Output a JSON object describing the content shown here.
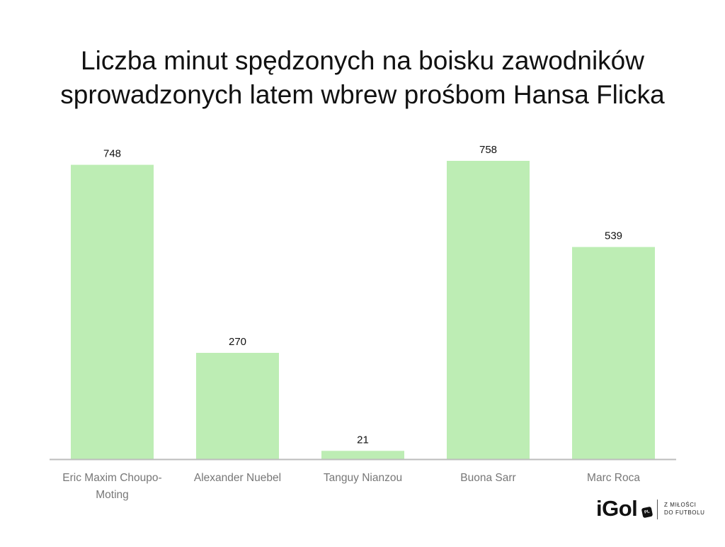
{
  "chart_data": {
    "type": "bar",
    "title_lines": [
      "Liczba minut spędzonych na boisku zawodników",
      "sprowadzonych latem wbrew prośbom Hansa Flicka"
    ],
    "categories": [
      [
        "Eric Maxim Choupo-",
        "Moting"
      ],
      [
        "Alexander Nuebel"
      ],
      [
        "Tanguy Nianzou"
      ],
      [
        "Buona Sarr"
      ],
      [
        "Marc Roca"
      ]
    ],
    "values": [
      748,
      270,
      21,
      758,
      539
    ],
    "data_labels": [
      "748",
      "270",
      "21",
      "758",
      "539"
    ],
    "ylim": [
      0,
      758
    ],
    "bar_color": "#bdedb4",
    "baseline_color": "#bdbdbd",
    "label_color": "#111111",
    "tick_label_color": "#777777",
    "grid": false,
    "legend": "none"
  },
  "branding": {
    "logo": "iGol",
    "badge": "PL",
    "tagline_lines": [
      "Z MIŁOŚCI",
      "DO FUTBOLU"
    ]
  }
}
